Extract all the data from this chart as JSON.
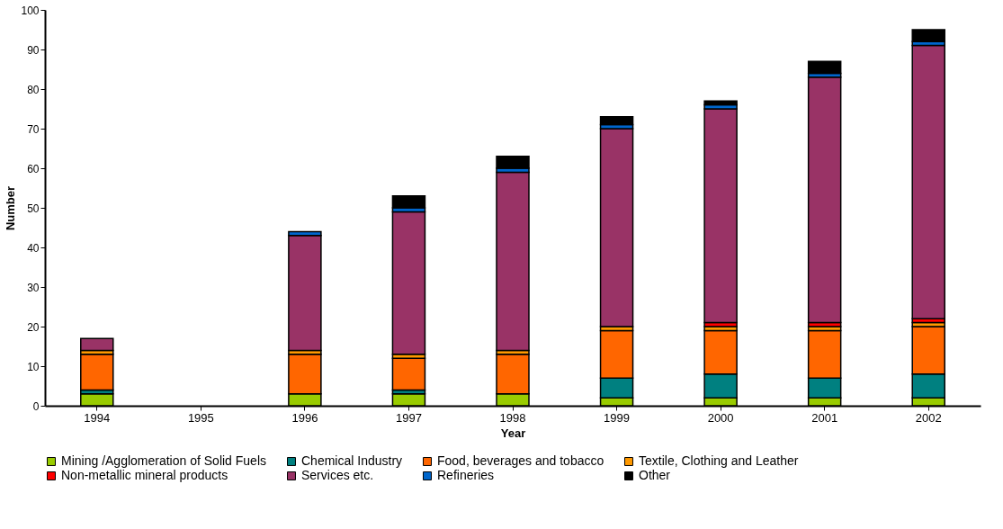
{
  "chart_data": {
    "type": "bar",
    "stacked": true,
    "xlabel": "Year",
    "ylabel": "Number",
    "categories": [
      "1994",
      "1995",
      "1996",
      "1997",
      "1998",
      "1999",
      "2000",
      "2001",
      "2002"
    ],
    "series": [
      {
        "name": "Mining /Agglomeration of Solid Fuels",
        "color": "#99cc00",
        "values": [
          3,
          null,
          3,
          3,
          3,
          2,
          2,
          2,
          2
        ]
      },
      {
        "name": "Chemical Industry",
        "color": "#008080",
        "values": [
          1,
          null,
          0,
          1,
          0,
          5,
          6,
          5,
          6
        ]
      },
      {
        "name": "Food, beverages and tobacco",
        "color": "#ff6600",
        "values": [
          9,
          null,
          10,
          8,
          10,
          12,
          11,
          12,
          12
        ]
      },
      {
        "name": "Textile, Clothing and Leather",
        "color": "#ff9900",
        "values": [
          1,
          null,
          1,
          1,
          1,
          1,
          1,
          1,
          1
        ]
      },
      {
        "name": "Non-metallic mineral products",
        "color": "#ff0000",
        "values": [
          0,
          null,
          0,
          0,
          0,
          0,
          1,
          1,
          1
        ]
      },
      {
        "name": "Services etc.",
        "color": "#993366",
        "values": [
          3,
          null,
          29,
          36,
          45,
          50,
          54,
          62,
          69
        ]
      },
      {
        "name": "Refineries",
        "color": "#0066cc",
        "values": [
          0,
          null,
          1,
          1,
          1,
          1,
          1,
          1,
          1
        ]
      },
      {
        "name": "Other",
        "color": "#000000",
        "values": [
          0,
          null,
          0,
          3,
          3,
          2,
          1,
          3,
          3
        ]
      }
    ],
    "ylim": [
      0,
      100
    ],
    "yticks": [
      0,
      10,
      20,
      30,
      40,
      50,
      60,
      70,
      80,
      90,
      100
    ],
    "grid": false,
    "legend": "bottom"
  }
}
